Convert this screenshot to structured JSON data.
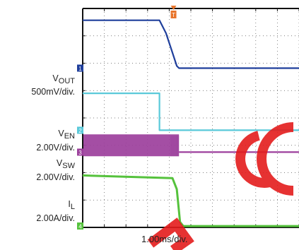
{
  "chart_data": {
    "type": "line",
    "x_scale": "1.00ms/div.",
    "x_divisions": 10,
    "y_divisions": 8,
    "grid": true,
    "channels": [
      {
        "id": "VOUT",
        "name_main": "V",
        "name_sub": "OUT",
        "scale": "500mV/div.",
        "marker": "1",
        "color": "#1f3f9c",
        "points": [
          [
            0.0,
            7.57
          ],
          [
            3.55,
            7.57
          ],
          [
            3.85,
            7.1
          ],
          [
            4.1,
            6.5
          ],
          [
            4.35,
            5.9
          ],
          [
            4.45,
            5.82
          ],
          [
            10.0,
            5.82
          ]
        ]
      },
      {
        "id": "VEN",
        "name_main": "V",
        "name_sub": "EN",
        "scale": "2.00V/div.",
        "marker": "2",
        "color": "#59c9d9",
        "points": [
          [
            0.0,
            4.9
          ],
          [
            3.55,
            4.9
          ],
          [
            3.55,
            3.55
          ],
          [
            10.0,
            3.55
          ]
        ]
      },
      {
        "id": "VSW",
        "name_main": "V",
        "name_sub": "SW",
        "scale": "2.00V/div.",
        "marker": "3",
        "color": "#9c3f9c",
        "switching": {
          "x_end": 4.45,
          "low": 2.6,
          "high": 3.4
        },
        "points": [
          [
            4.45,
            2.75
          ],
          [
            10.0,
            2.75
          ]
        ]
      },
      {
        "id": "IL",
        "name_main": "I",
        "name_sub": "L",
        "scale": "2.00A/div.",
        "marker": "4",
        "color": "#55c23c",
        "points": [
          [
            0.0,
            1.9
          ],
          [
            4.15,
            1.8
          ],
          [
            4.35,
            1.4
          ],
          [
            4.5,
            0.2
          ],
          [
            4.65,
            0.05
          ],
          [
            10.0,
            0.05
          ]
        ]
      }
    ],
    "trigger": {
      "label": "T",
      "x": 4.2,
      "color": "#e8742b"
    }
  },
  "watermark": "ECO"
}
